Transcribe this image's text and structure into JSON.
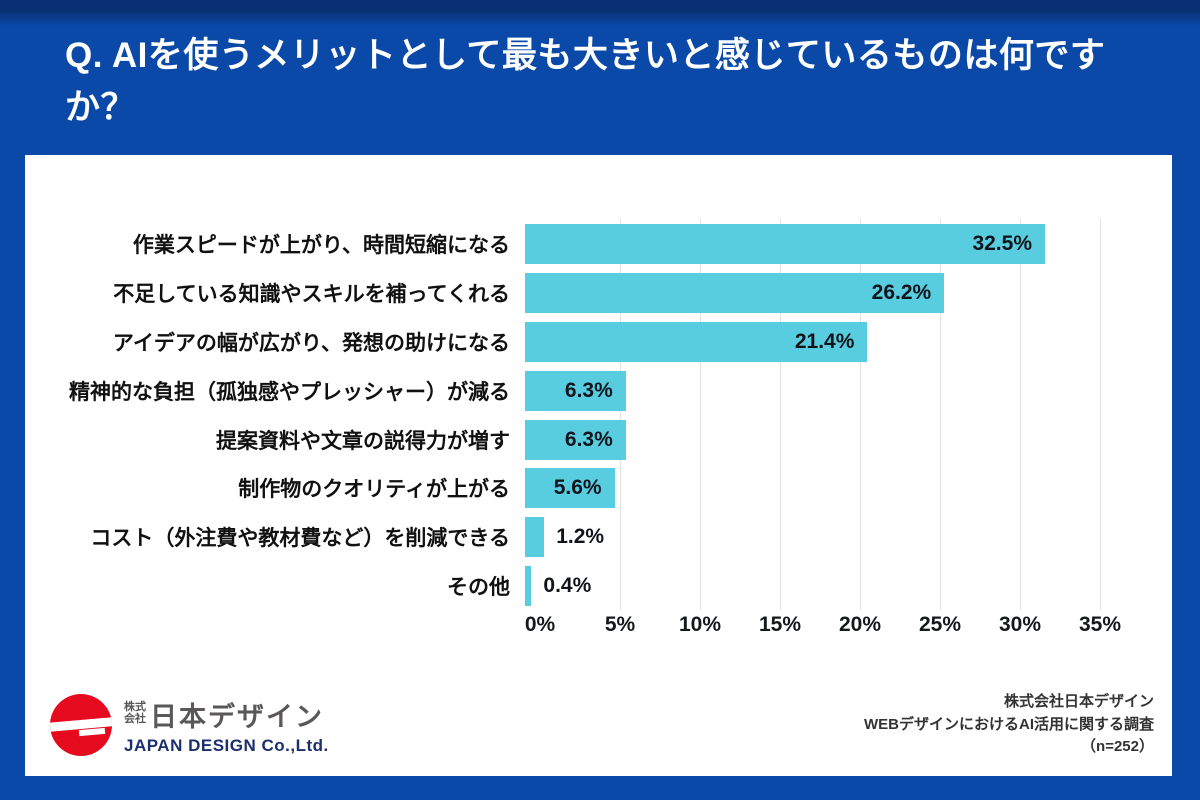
{
  "header": {
    "question": "Q. AIを使うメリットとして最も大きいと感じているものは何ですか？"
  },
  "chart_data": {
    "type": "bar",
    "orientation": "horizontal",
    "title": "",
    "categories": [
      "作業スピードが上がり、時間短縮になる",
      "不足している知識やスキルを補ってくれる",
      "アイデアの幅が広がり、発想の助けになる",
      "精神的な負担（孤独感やプレッシャー）が減る",
      "提案資料や文章の説得力が増す",
      "制作物のクオリティが上がる",
      "コスト（外注費や教材費など）を削減できる",
      "その他"
    ],
    "values": [
      32.5,
      26.2,
      21.4,
      6.3,
      6.3,
      5.6,
      1.2,
      0.4
    ],
    "value_labels": [
      "32.5%",
      "26.2%",
      "21.4%",
      "6.3%",
      "6.3%",
      "5.6%",
      "1.2%",
      "0.4%"
    ],
    "x_tick_labels": [
      "0%",
      "5%",
      "10%",
      "15%",
      "20%",
      "25%",
      "30%",
      "35%"
    ],
    "xlim": [
      0,
      35
    ],
    "grid": true,
    "legend": "none",
    "bar_color": "#58cde0",
    "inside_label_threshold": 5
  },
  "footer": {
    "logo": {
      "prefix_line1": "株式",
      "prefix_line2": "会社",
      "company_name": "日本デザイン",
      "company_name_en": "JAPAN DESIGN Co.,Ltd."
    },
    "source": {
      "line1": "株式会社日本デザイン",
      "line2": "WEBデザインにおけるAI活用に関する調査",
      "line3": "（n=252）"
    }
  },
  "colors": {
    "background_blue": "#0a49a8",
    "background_edge": "#0a2f72",
    "card_white": "#ffffff",
    "bar_cyan": "#58cde0",
    "gridline_gray": "#e2e2e2",
    "text_dark": "#111111",
    "logo_red": "#e50a1e",
    "logo_navy": "#1c2f6e"
  }
}
